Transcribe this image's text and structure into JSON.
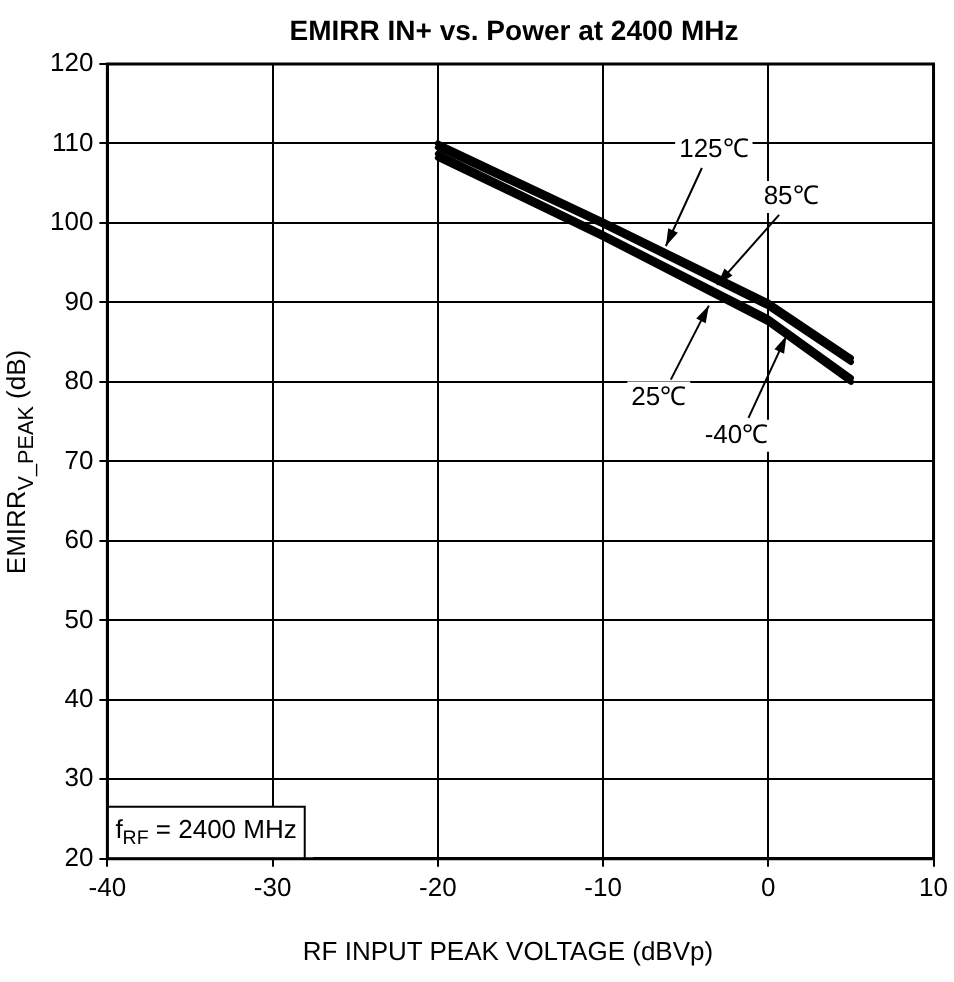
{
  "chart_data": {
    "type": "line",
    "title": "EMIRR IN+ vs. Power at 2400 MHz",
    "xlabel": "RF INPUT PEAK VOLTAGE (dBVp)",
    "ylabel": "EMIRR$_{V_PEAK}$ (dB)",
    "x": [
      -20,
      -10,
      0,
      5
    ],
    "series": [
      {
        "color": "#000000",
        "values": [
          110,
          100.2,
          90,
          83
        ]
      },
      {
        "color": "#000000",
        "values": [
          109.5,
          99.8,
          89.5,
          82.5
        ]
      },
      {
        "color": "#000000",
        "values": [
          108.7,
          98.6,
          88,
          80.5
        ]
      },
      {
        "color": "#000000",
        "values": [
          108.2,
          98.2,
          87.5,
          80
        ]
      }
    ],
    "annotations": [
      {
        "text": "125℃",
        "x": -6.2,
        "y": 97.1
      },
      {
        "text": "85℃",
        "x": -3.1,
        "y": 92.2
      },
      {
        "text": "25℃",
        "x": -3.6,
        "y": 89.6
      },
      {
        "text": "-40℃",
        "x": 1.1,
        "y": 85.8
      },
      "f$_{RF}$ = 2400 MHz"
    ],
    "xlim": [
      -40,
      10
    ],
    "xticks": [
      -40,
      -30,
      -20,
      -10,
      0,
      10
    ],
    "ylim": [
      20,
      120
    ],
    "yticks": [
      20,
      30,
      40,
      50,
      60,
      70,
      80,
      90,
      100,
      110,
      120
    ],
    "grid": true,
    "legend": false,
    "marker": "none",
    "line_style": "solid"
  }
}
